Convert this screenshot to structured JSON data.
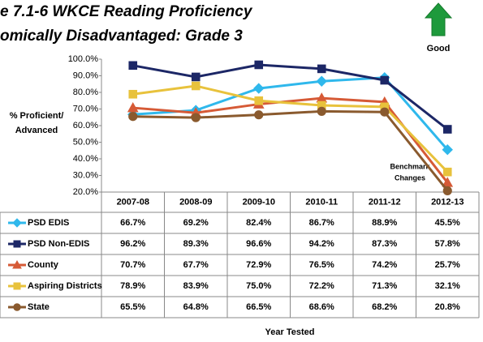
{
  "chart_data": {
    "type": "line",
    "title": [
      "e 7.1-6 WKCE Reading Proficiency",
      "omically Disadvantaged: Grade 3"
    ],
    "y_label": [
      "% Proficient/",
      "Advanced"
    ],
    "x_label": "Year Tested",
    "annotations": [
      "Good",
      "Benchmark",
      "Changes"
    ],
    "categories": [
      "2007-08",
      "2008-09",
      "2009-10",
      "2010-11",
      "2011-12",
      "2012-13"
    ],
    "series": [
      {
        "name": "PSD EDIS",
        "color": "#2fb8ec",
        "marker": "diamond",
        "values": [
          66.7,
          69.2,
          82.4,
          86.7,
          88.9,
          45.5
        ],
        "value_labels": [
          "66.7%",
          "69.2%",
          "82.4%",
          "86.7%",
          "88.9%",
          "45.5%"
        ]
      },
      {
        "name": "PSD Non-EDIS",
        "color": "#1c2766",
        "marker": "square",
        "values": [
          96.2,
          89.3,
          96.6,
          94.2,
          87.3,
          57.8
        ],
        "value_labels": [
          "96.2%",
          "89.3%",
          "96.6%",
          "94.2%",
          "87.3%",
          "57.8%"
        ]
      },
      {
        "name": "County",
        "color": "#d65a36",
        "marker": "triangle",
        "values": [
          70.7,
          67.7,
          72.9,
          76.5,
          74.2,
          25.7
        ],
        "value_labels": [
          "70.7%",
          "67.7%",
          "72.9%",
          "76.5%",
          "74.2%",
          "25.7%"
        ]
      },
      {
        "name": "Aspiring Districts",
        "color": "#e8c23c",
        "marker": "square",
        "values": [
          78.9,
          83.9,
          75.0,
          72.2,
          71.3,
          32.1
        ],
        "value_labels": [
          "78.9%",
          "83.9%",
          "75.0%",
          "72.2%",
          "71.3%",
          "32.1%"
        ]
      },
      {
        "name": "State",
        "color": "#8a5a2e",
        "marker": "circle",
        "values": [
          65.5,
          64.8,
          66.5,
          68.6,
          68.2,
          20.8
        ],
        "value_labels": [
          "65.5%",
          "64.8%",
          "66.5%",
          "68.6%",
          "68.2%",
          "20.8%"
        ]
      }
    ],
    "ylim": [
      20,
      100
    ],
    "yticks": [
      {
        "value": 20,
        "label": "20.0%"
      },
      {
        "value": 30,
        "label": "30.0%"
      },
      {
        "value": 40,
        "label": "40.0%"
      },
      {
        "value": 50,
        "label": "50.0%"
      },
      {
        "value": 60,
        "label": "60.0%"
      },
      {
        "value": 70,
        "label": "70.0%"
      },
      {
        "value": 80,
        "label": "80.0%"
      },
      {
        "value": 90,
        "label": "90.0%"
      },
      {
        "value": 100,
        "label": "100.0%"
      }
    ]
  }
}
